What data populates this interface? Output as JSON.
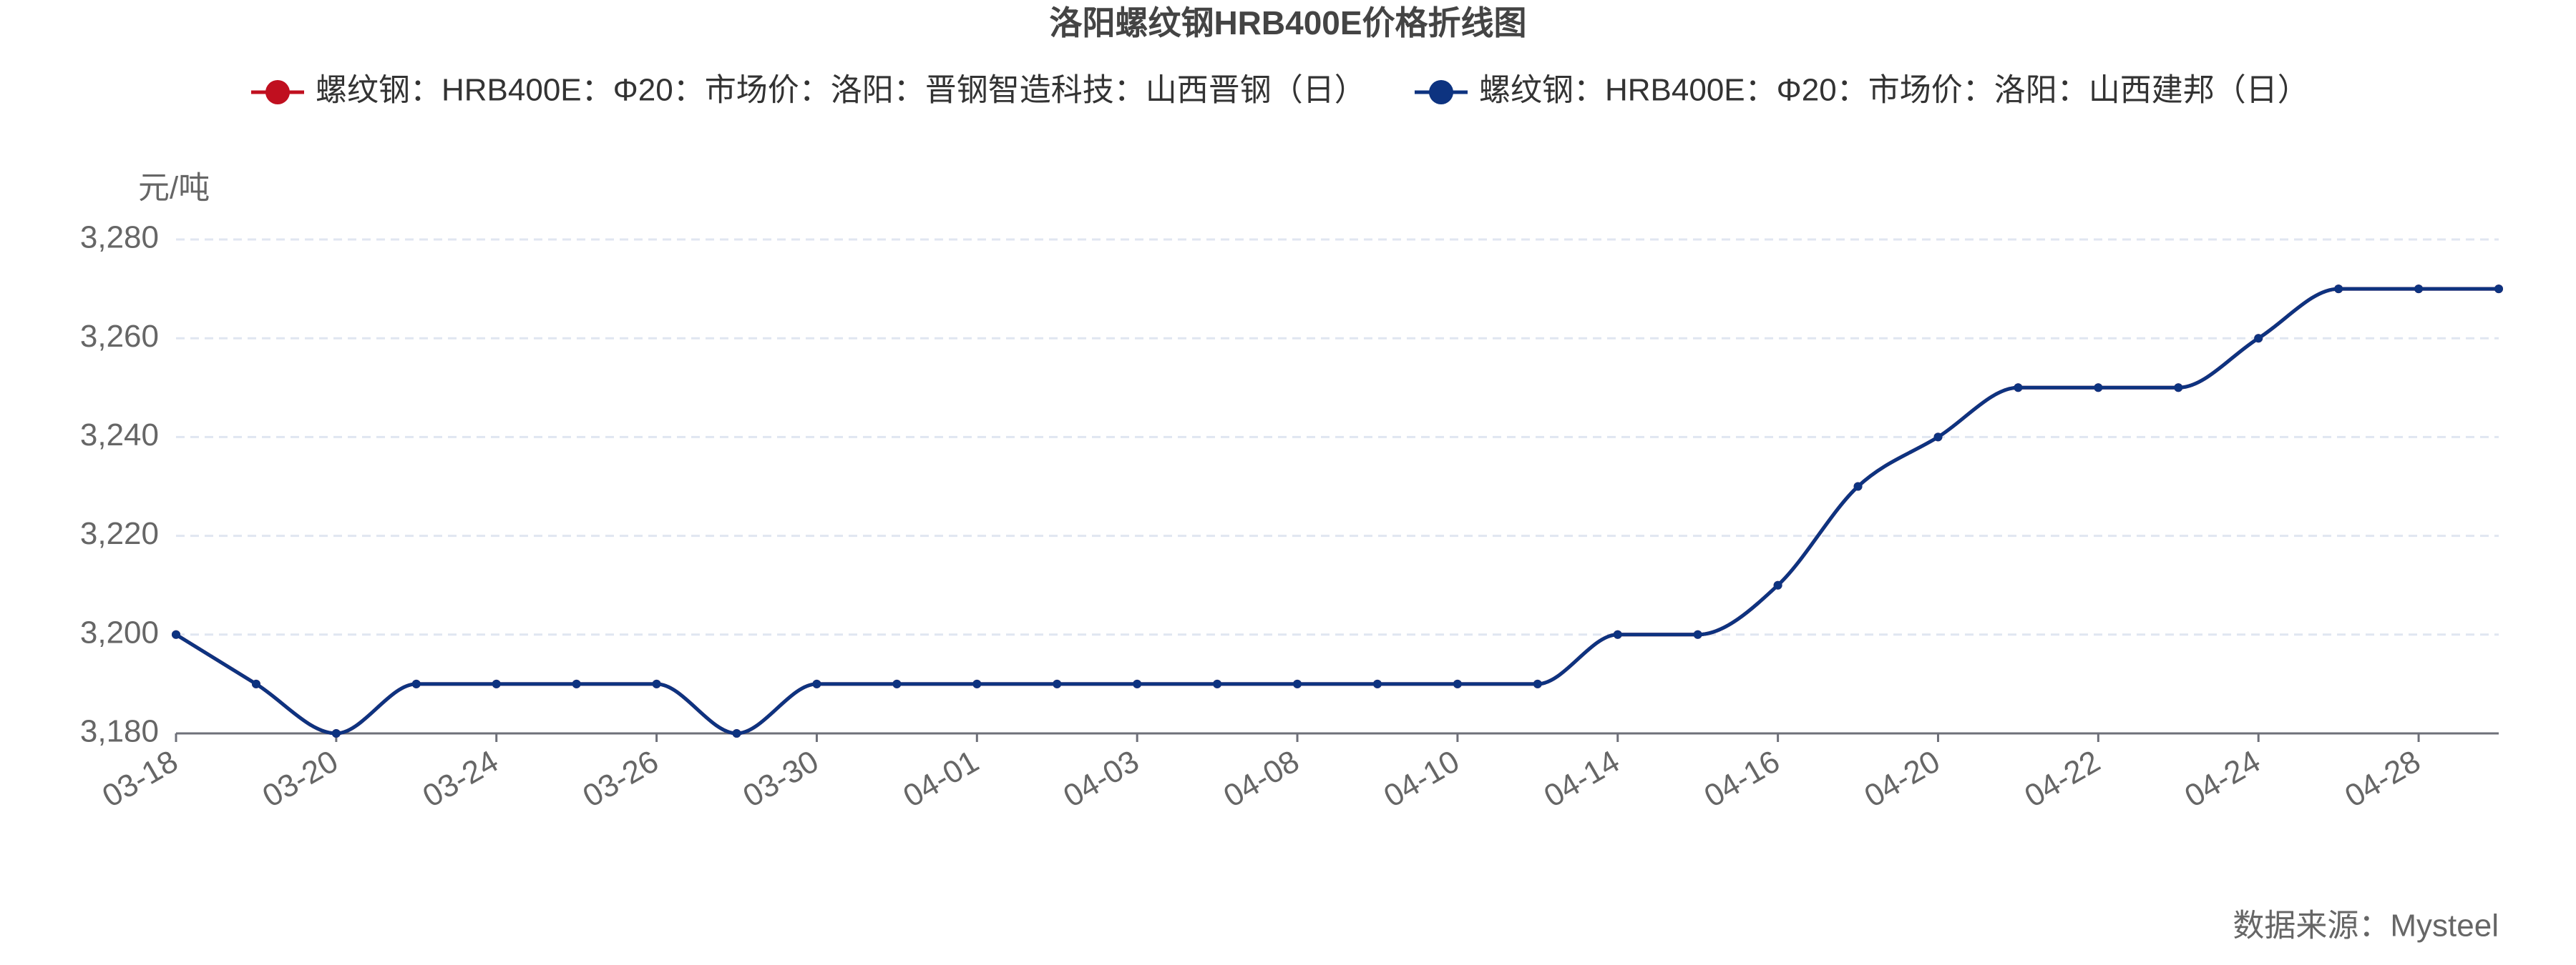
{
  "chart_data": {
    "type": "line",
    "title": "洛阳螺纹钢HRB400E价格折线图",
    "y_label": "元/吨",
    "source": "数据来源：Mysteel",
    "categories": [
      "03-18",
      null,
      "03-20",
      null,
      "03-24",
      null,
      "03-26",
      null,
      "03-30",
      null,
      "04-01",
      null,
      "04-03",
      null,
      "04-08",
      null,
      "04-10",
      null,
      "04-14",
      null,
      "04-16",
      null,
      "04-20",
      null,
      "04-22",
      null,
      "04-24",
      null,
      "04-28",
      null
    ],
    "series": [
      {
        "name": "螺纹钢：HRB400E：Φ20：市场价：洛阳：晋钢智造科技：山西晋钢（日）",
        "color": "#c00f1f",
        "values": [
          3200,
          3190,
          3180,
          3190,
          3190,
          3190,
          3190,
          3180,
          3190,
          3190,
          3190,
          3190,
          3190,
          3190,
          3190,
          3190,
          3190,
          3190,
          3200,
          3200,
          3210,
          3230,
          3240,
          3250,
          3250,
          3250,
          3260,
          3270,
          3270,
          3270
        ]
      },
      {
        "name": "螺纹钢：HRB400E：Φ20：市场价：洛阳：山西建邦（日）",
        "color": "#0d3380",
        "values": [
          3200,
          3190,
          3180,
          3190,
          3190,
          3190,
          3190,
          3180,
          3190,
          3190,
          3190,
          3190,
          3190,
          3190,
          3190,
          3190,
          3190,
          3190,
          3200,
          3200,
          3210,
          3230,
          3240,
          3250,
          3250,
          3250,
          3260,
          3270,
          3270,
          3270
        ]
      }
    ],
    "ylim": [
      3180,
      3280
    ],
    "yticks": [
      {
        "value": 3180,
        "label": "3,180"
      },
      {
        "value": 3200,
        "label": "3,200"
      },
      {
        "value": 3220,
        "label": "3,220"
      },
      {
        "value": 3240,
        "label": "3,240"
      },
      {
        "value": 3260,
        "label": "3,260"
      },
      {
        "value": 3280,
        "label": "3,280"
      }
    ],
    "grid": true,
    "smooth": true
  }
}
